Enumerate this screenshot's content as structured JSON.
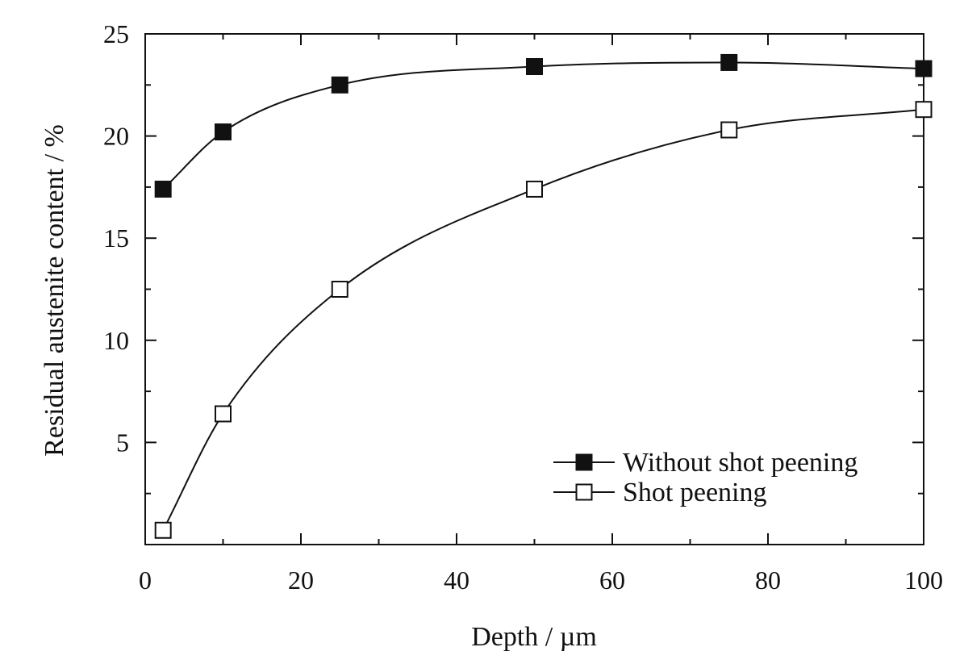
{
  "chart_data": {
    "type": "line",
    "title": "",
    "xlabel": "Depth / µm",
    "ylabel": "Residual austenite content / %",
    "xlim": [
      0,
      100
    ],
    "ylim": [
      0,
      25
    ],
    "x_ticks": [
      0,
      20,
      40,
      60,
      80,
      100
    ],
    "x_tick_labels": [
      "0",
      "20",
      "40",
      "60",
      "80",
      "100"
    ],
    "y_ticks": [
      5,
      10,
      15,
      20,
      25
    ],
    "y_tick_labels": [
      "5",
      "10",
      "15",
      "20",
      "25"
    ],
    "grid": false,
    "legend_position": "bottom-right",
    "series": [
      {
        "name": "Without shot peening",
        "marker": "filled-square",
        "color": "#111111",
        "x": [
          0,
          10,
          25,
          50,
          75,
          100
        ],
        "y": [
          17.4,
          20.2,
          22.5,
          23.4,
          23.6,
          23.3
        ]
      },
      {
        "name": "Shot peening",
        "marker": "open-square",
        "color": "#111111",
        "x": [
          0,
          10,
          25,
          50,
          75,
          100
        ],
        "y": [
          0.7,
          6.4,
          12.5,
          17.4,
          20.3,
          21.3
        ]
      }
    ]
  }
}
